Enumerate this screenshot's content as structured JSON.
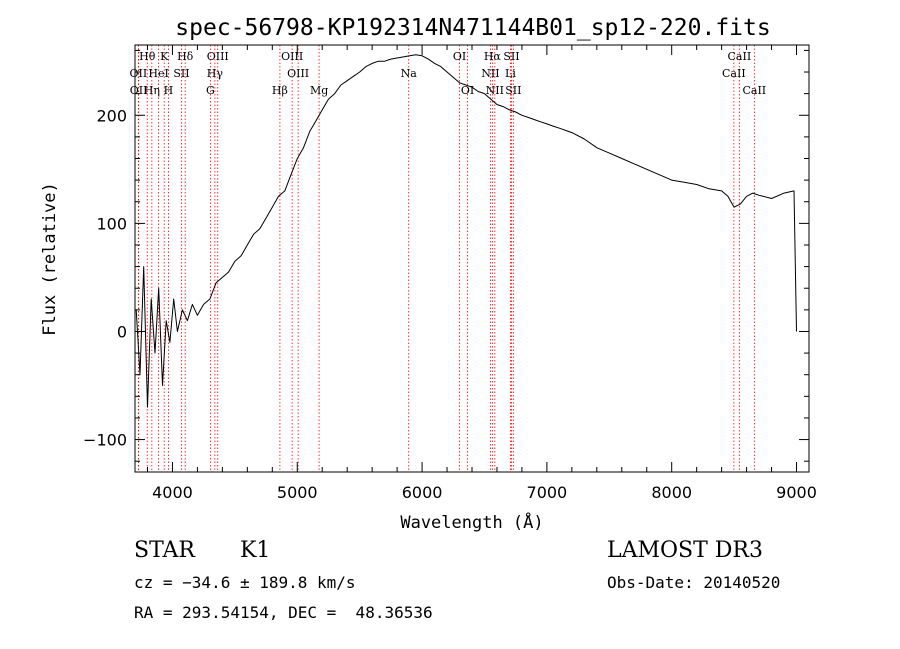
{
  "chart_data": {
    "type": "line",
    "title": "spec-56798-KP192314N471144B01_sp12-220.fits",
    "xlabel": "Wavelength (Å)",
    "ylabel": "Flux (relative)",
    "xlim": [
      3700,
      9100
    ],
    "ylim": [
      -130,
      265
    ],
    "x_ticks": [
      4000,
      5000,
      6000,
      7000,
      8000,
      9000
    ],
    "y_ticks": [
      -100,
      0,
      100,
      200
    ],
    "x_tick_labels": [
      "4000",
      "5000",
      "6000",
      "7000",
      "8000",
      "9000"
    ],
    "y_tick_labels": [
      "−100",
      "0",
      "100",
      "200"
    ],
    "line_color": "#ff0000",
    "lines": [
      {
        "label": "Hθ",
        "wavelength": 3798,
        "row": 0
      },
      {
        "label": "K",
        "wavelength": 3934,
        "row": 0
      },
      {
        "label": "Hδ",
        "wavelength": 4102,
        "row": 0
      },
      {
        "label": "OIII",
        "wavelength": 4363,
        "row": 0
      },
      {
        "label": "OIII",
        "wavelength": 4959,
        "row": 0
      },
      {
        "label": "OI",
        "wavelength": 6300,
        "row": 0
      },
      {
        "label": "Hα",
        "wavelength": 6563,
        "row": 0
      },
      {
        "label": "SII",
        "wavelength": 6716,
        "row": 0
      },
      {
        "label": "CaII",
        "wavelength": 8542,
        "row": 0
      },
      {
        "label": "OII",
        "wavelength": 3727,
        "row": 1
      },
      {
        "label": "HeI",
        "wavelength": 3889,
        "row": 1
      },
      {
        "label": "SII",
        "wavelength": 4072,
        "row": 1
      },
      {
        "label": "Hγ",
        "wavelength": 4340,
        "row": 1
      },
      {
        "label": "OIII",
        "wavelength": 5007,
        "row": 1
      },
      {
        "label": "Na",
        "wavelength": 5893,
        "row": 1
      },
      {
        "label": "NII",
        "wavelength": 6548,
        "row": 1
      },
      {
        "label": "Li",
        "wavelength": 6708,
        "row": 1
      },
      {
        "label": "CaII",
        "wavelength": 8498,
        "row": 1
      },
      {
        "label": "OII",
        "wavelength": 3729,
        "row": 2
      },
      {
        "label": "Hη",
        "wavelength": 3835,
        "row": 2
      },
      {
        "label": "H",
        "wavelength": 3968,
        "row": 2
      },
      {
        "label": "G",
        "wavelength": 4304,
        "row": 2
      },
      {
        "label": "Hβ",
        "wavelength": 4861,
        "row": 2
      },
      {
        "label": "Mg",
        "wavelength": 5175,
        "row": 2
      },
      {
        "label": "OI",
        "wavelength": 6364,
        "row": 2
      },
      {
        "label": "NII",
        "wavelength": 6583,
        "row": 2
      },
      {
        "label": "SII",
        "wavelength": 6731,
        "row": 2
      },
      {
        "label": "CaII",
        "wavelength": 8662,
        "row": 2
      }
    ],
    "series": [
      {
        "x": [
          3710,
          3740,
          3770,
          3800,
          3830,
          3860,
          3890,
          3920,
          3950,
          3980,
          4010,
          4040,
          4080,
          4120,
          4160,
          4200,
          4250,
          4300,
          4350,
          4400,
          4450,
          4500,
          4550,
          4600,
          4650,
          4700,
          4750,
          4800,
          4850,
          4900,
          4950,
          5000,
          5050,
          5100,
          5150,
          5200,
          5250,
          5300,
          5350,
          5400,
          5450,
          5500,
          5550,
          5600,
          5650,
          5700,
          5750,
          5800,
          5850,
          5900,
          5950,
          6000,
          6050,
          6100,
          6150,
          6200,
          6250,
          6300,
          6350,
          6400,
          6450,
          6500,
          6550,
          6600,
          6650,
          6700,
          6750,
          6800,
          6850,
          6900,
          6950,
          7000,
          7050,
          7100,
          7150,
          7200,
          7300,
          7400,
          7500,
          7600,
          7700,
          7800,
          7900,
          8000,
          8100,
          8200,
          8300,
          8400,
          8450,
          8500,
          8550,
          8600,
          8650,
          8700,
          8800,
          8900,
          8980,
          9000
        ],
        "y": [
          20,
          -40,
          60,
          -70,
          30,
          -20,
          40,
          -50,
          10,
          -10,
          30,
          0,
          20,
          10,
          25,
          15,
          25,
          30,
          45,
          50,
          55,
          65,
          70,
          80,
          90,
          95,
          105,
          115,
          125,
          130,
          145,
          160,
          170,
          185,
          195,
          205,
          215,
          220,
          228,
          232,
          236,
          240,
          245,
          248,
          250,
          250,
          252,
          253,
          254,
          255,
          256,
          255,
          252,
          248,
          245,
          240,
          235,
          230,
          228,
          226,
          222,
          220,
          215,
          210,
          208,
          205,
          203,
          200,
          198,
          196,
          194,
          192,
          190,
          188,
          186,
          184,
          178,
          170,
          165,
          160,
          155,
          150,
          145,
          140,
          138,
          136,
          132,
          130,
          125,
          115,
          118,
          125,
          128,
          126,
          123,
          128,
          130,
          0
        ]
      }
    ]
  },
  "info": {
    "object_class": "STAR",
    "subclass": "K1",
    "survey": "LAMOST DR3",
    "velocity": "cz = −34.6 ± 189.8 km/s",
    "obs_date": "Obs-Date: 20140520",
    "coords": "RA = 293.54154, DEC =  48.36536"
  }
}
